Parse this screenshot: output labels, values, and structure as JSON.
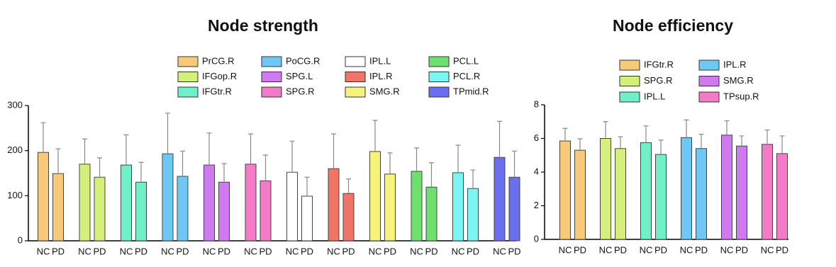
{
  "chart_data": [
    {
      "type": "bar",
      "title": "Node strength",
      "categories": [
        "NC",
        "PD"
      ],
      "ylim": [
        0,
        300
      ],
      "yticks": [
        0,
        100,
        200,
        300
      ],
      "series": [
        {
          "name": "PrCG.R",
          "color": "#f9c97a",
          "values": [
            196,
            149
          ],
          "errors": [
            66,
            55
          ]
        },
        {
          "name": "IFGop.R",
          "color": "#d4f07a",
          "values": [
            170,
            141
          ],
          "errors": [
            56,
            43
          ]
        },
        {
          "name": "IFGtr.R",
          "color": "#6ef0c8",
          "values": [
            168,
            130
          ],
          "errors": [
            67,
            44
          ]
        },
        {
          "name": "PoCG.R",
          "color": "#6ec8f5",
          "values": [
            193,
            143
          ],
          "errors": [
            90,
            56
          ]
        },
        {
          "name": "SPG.L",
          "color": "#cf7af0",
          "values": [
            168,
            130
          ],
          "errors": [
            71,
            41
          ]
        },
        {
          "name": "SPG.R",
          "color": "#f57ac8",
          "values": [
            170,
            133
          ],
          "errors": [
            67,
            57
          ]
        },
        {
          "name": "IPL.L",
          "color": "#ffffff",
          "values": [
            152,
            99
          ],
          "errors": [
            69,
            42
          ]
        },
        {
          "name": "IPL.R",
          "color": "#f07468",
          "values": [
            160,
            105
          ],
          "errors": [
            77,
            32
          ]
        },
        {
          "name": "SMG.R",
          "color": "#f7f27a",
          "values": [
            198,
            148
          ],
          "errors": [
            69,
            47
          ]
        },
        {
          "name": "PCL.L",
          "color": "#6ee06e",
          "values": [
            154,
            119
          ],
          "errors": [
            52,
            54
          ]
        },
        {
          "name": "PCL.R",
          "color": "#7af7f5",
          "values": [
            151,
            116
          ],
          "errors": [
            61,
            41
          ]
        },
        {
          "name": "TPmid.R",
          "color": "#6a6ff0",
          "values": [
            185,
            141
          ],
          "errors": [
            80,
            58
          ]
        }
      ]
    },
    {
      "type": "bar",
      "title": "Node efficiency",
      "categories": [
        "NC",
        "PD"
      ],
      "ylim": [
        0,
        8
      ],
      "yticks": [
        0,
        2,
        4,
        6,
        8
      ],
      "series": [
        {
          "name": "IFGtr.R",
          "color": "#f9c97a",
          "values": [
            5.85,
            5.3
          ],
          "errors": [
            0.75,
            0.68
          ]
        },
        {
          "name": "SPG.R",
          "color": "#d4f07a",
          "values": [
            6.0,
            5.4
          ],
          "errors": [
            1.0,
            0.7
          ]
        },
        {
          "name": "IPL.L",
          "color": "#6ef0c8",
          "values": [
            5.75,
            5.05
          ],
          "errors": [
            1.0,
            0.85
          ]
        },
        {
          "name": "IPL.R",
          "color": "#6ec8f5",
          "values": [
            6.05,
            5.4
          ],
          "errors": [
            1.05,
            0.85
          ]
        },
        {
          "name": "SMG.R",
          "color": "#cf7af0",
          "values": [
            6.2,
            5.55
          ],
          "errors": [
            0.85,
            0.6
          ]
        },
        {
          "name": "TPsup.R",
          "color": "#f57ac8",
          "values": [
            5.65,
            5.1
          ],
          "errors": [
            0.85,
            1.05
          ]
        }
      ]
    }
  ]
}
